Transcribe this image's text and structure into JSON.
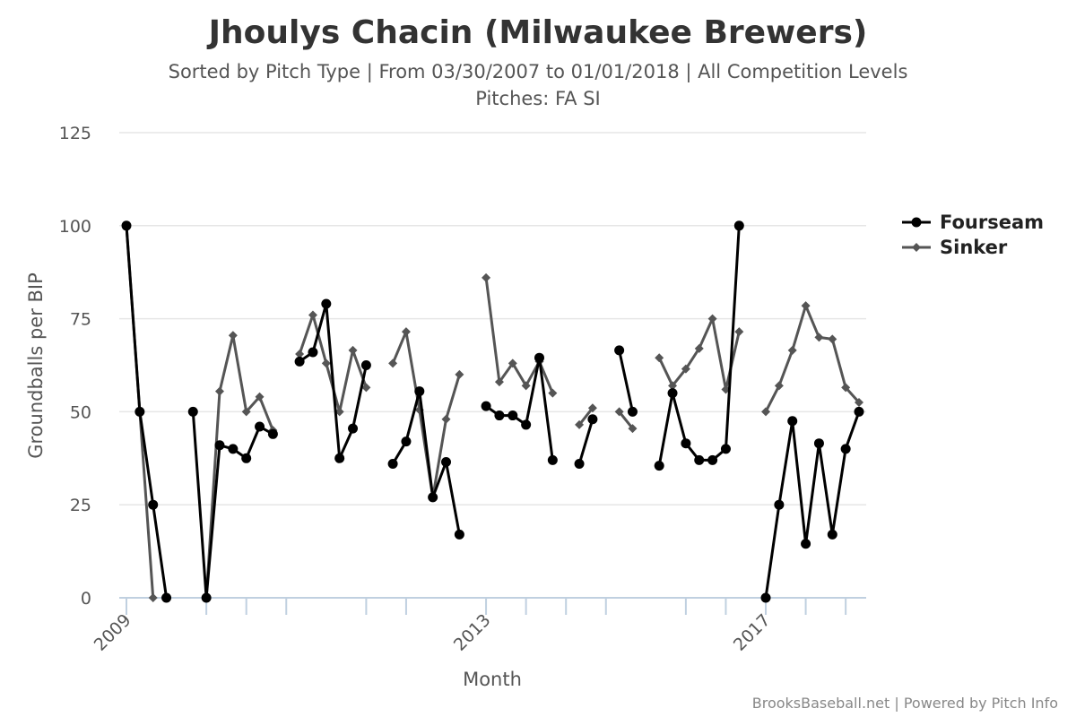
{
  "chart_data": {
    "type": "line",
    "title": "Jhoulys Chacin (Milwaukee Brewers)",
    "subtitle": "Sorted by Pitch Type | From 03/30/2007 to 01/01/2018 | All Competition Levels",
    "subtitle2": "Pitches: FA SI",
    "xlabel": "Month",
    "ylabel": "Groundballs per BIP",
    "ylim": [
      0,
      125
    ],
    "yticks": [
      0,
      25,
      50,
      75,
      100,
      125
    ],
    "xlim": [
      0,
      55
    ],
    "xticks": [
      {
        "x": 0,
        "label": "2009"
      },
      {
        "x": 6,
        "label": ""
      },
      {
        "x": 9,
        "label": ""
      },
      {
        "x": 12,
        "label": ""
      },
      {
        "x": 18,
        "label": ""
      },
      {
        "x": 21,
        "label": ""
      },
      {
        "x": 27,
        "label": "2013"
      },
      {
        "x": 30,
        "label": ""
      },
      {
        "x": 33,
        "label": ""
      },
      {
        "x": 36,
        "label": ""
      },
      {
        "x": 42,
        "label": ""
      },
      {
        "x": 45,
        "label": ""
      },
      {
        "x": 48,
        "label": "2017"
      },
      {
        "x": 51,
        "label": ""
      },
      {
        "x": 54,
        "label": ""
      }
    ],
    "legend_position": "right",
    "series": [
      {
        "name": "Fourseam",
        "color": "#000000",
        "marker": "circle",
        "segments": [
          [
            [
              0,
              100
            ],
            [
              1,
              50
            ],
            [
              2,
              25
            ],
            [
              3,
              0
            ]
          ],
          [
            [
              5,
              50
            ],
            [
              6,
              0
            ],
            [
              7,
              41
            ],
            [
              8,
              40
            ],
            [
              9,
              37.5
            ],
            [
              10,
              46
            ],
            [
              11,
              44
            ]
          ],
          [
            [
              13,
              63.5
            ],
            [
              14,
              66
            ],
            [
              15,
              79
            ],
            [
              16,
              37.5
            ],
            [
              17,
              45.5
            ],
            [
              18,
              62.5
            ]
          ],
          [
            [
              20,
              36
            ],
            [
              21,
              42
            ],
            [
              22,
              55.5
            ],
            [
              23,
              27
            ],
            [
              24,
              36.5
            ],
            [
              25,
              17
            ]
          ],
          [
            [
              27,
              51.5
            ],
            [
              28,
              49
            ],
            [
              29,
              49
            ],
            [
              30,
              46.5
            ],
            [
              31,
              64.5
            ],
            [
              32,
              37
            ]
          ],
          [
            [
              34,
              36
            ],
            [
              35,
              48
            ]
          ],
          [
            [
              37,
              66.5
            ],
            [
              38,
              50
            ]
          ],
          [
            [
              40,
              35.5
            ],
            [
              41,
              55
            ],
            [
              42,
              41.5
            ],
            [
              43,
              37
            ],
            [
              44,
              37
            ],
            [
              45,
              40
            ],
            [
              46,
              100
            ]
          ],
          [
            [
              48,
              0
            ],
            [
              49,
              25
            ],
            [
              50,
              47.5
            ],
            [
              51,
              14.5
            ],
            [
              52,
              41.5
            ],
            [
              53,
              17
            ],
            [
              54,
              40
            ],
            [
              55,
              50
            ]
          ]
        ]
      },
      {
        "name": "Sinker",
        "color": "#555555",
        "marker": "diamond",
        "segments": [
          [
            [
              0,
              100
            ],
            [
              1,
              50
            ],
            [
              2,
              0
            ]
          ],
          [
            [
              6,
              0
            ],
            [
              7,
              55.5
            ],
            [
              8,
              70.5
            ],
            [
              9,
              50
            ],
            [
              10,
              54
            ],
            [
              11,
              45
            ]
          ],
          [
            [
              13,
              65.5
            ],
            [
              14,
              76
            ],
            [
              15,
              63
            ],
            [
              16,
              50
            ],
            [
              17,
              66.5
            ],
            [
              18,
              56.5
            ]
          ],
          [
            [
              20,
              63
            ],
            [
              21,
              71.5
            ],
            [
              22,
              50.5
            ],
            [
              23,
              27
            ],
            [
              24,
              48
            ],
            [
              25,
              60
            ]
          ],
          [
            [
              27,
              86
            ],
            [
              28,
              58
            ],
            [
              29,
              63
            ],
            [
              30,
              57
            ],
            [
              31,
              63.5
            ],
            [
              32,
              55
            ]
          ],
          [
            [
              34,
              46.5
            ],
            [
              35,
              51
            ]
          ],
          [
            [
              37,
              50
            ],
            [
              38,
              45.5
            ]
          ],
          [
            [
              40,
              64.5
            ],
            [
              41,
              57
            ],
            [
              42,
              61.5
            ],
            [
              43,
              67
            ],
            [
              44,
              75
            ],
            [
              45,
              56
            ],
            [
              46,
              71.5
            ]
          ],
          [
            [
              48,
              50
            ],
            [
              49,
              57
            ],
            [
              50,
              66.5
            ],
            [
              51,
              78.5
            ],
            [
              52,
              70
            ],
            [
              53,
              69.5
            ],
            [
              54,
              56.5
            ],
            [
              55,
              52.5
            ]
          ]
        ]
      }
    ]
  },
  "credit": "BrooksBaseball.net | Powered by Pitch Info"
}
